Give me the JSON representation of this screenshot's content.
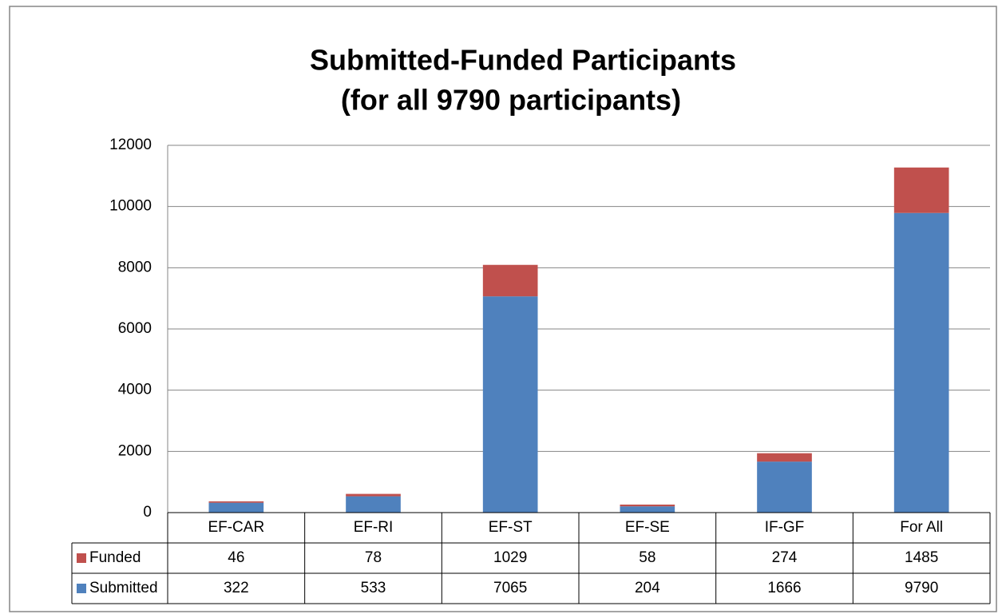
{
  "chart_data": {
    "type": "stacked_bar",
    "title": [
      "Submitted-Funded Participants",
      "(for all 9790 participants)"
    ],
    "categories": [
      "EF-CAR",
      "EF-RI",
      "EF-ST",
      "EF-SE",
      "IF-GF",
      "For All"
    ],
    "series": [
      {
        "name": "Funded",
        "color": "#c0504d",
        "values": [
          46,
          78,
          1029,
          58,
          274,
          1485
        ]
      },
      {
        "name": "Submitted",
        "color": "#4f81bd",
        "values": [
          322,
          533,
          7065,
          204,
          1666,
          9790
        ]
      }
    ],
    "ylim": [
      0,
      12000
    ],
    "yticks": [
      0,
      2000,
      4000,
      6000,
      8000,
      10000,
      12000
    ],
    "grid": true
  }
}
